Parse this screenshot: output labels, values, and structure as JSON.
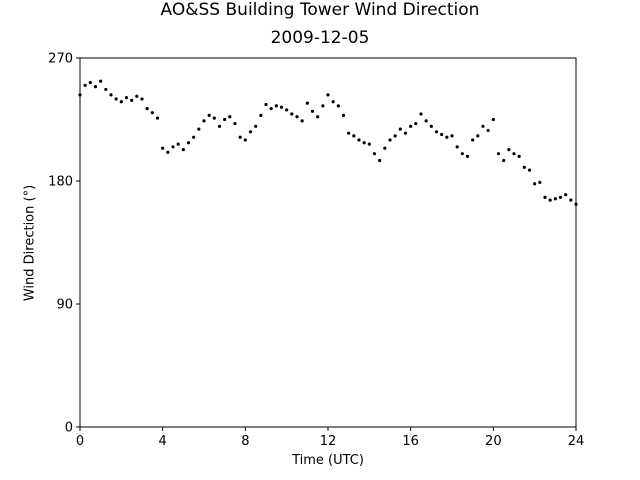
{
  "chart_data": {
    "type": "scatter",
    "title": "AO&SS Building Tower Wind Direction",
    "subtitle": "2009-12-05",
    "xlabel": "Time (UTC)",
    "ylabel": "Wind Direction (°)",
    "xlim": [
      0,
      24
    ],
    "ylim": [
      0,
      270
    ],
    "xticks": [
      0,
      4,
      8,
      12,
      16,
      20,
      24
    ],
    "yticks": [
      0,
      90,
      180,
      270
    ],
    "grid": false,
    "marker_color": "#000000",
    "series": [
      {
        "x": [
          0.0,
          0.25,
          0.5,
          0.75,
          1.0,
          1.25,
          1.5,
          1.75,
          2.0,
          2.25,
          2.5,
          2.75,
          3.0,
          3.25,
          3.5,
          3.75,
          4.0,
          4.25,
          4.5,
          4.75,
          5.0,
          5.25,
          5.5,
          5.75,
          6.0,
          6.25,
          6.5,
          6.75,
          7.0,
          7.25,
          7.5,
          7.75,
          8.0,
          8.25,
          8.5,
          8.75,
          9.0,
          9.25,
          9.5,
          9.75,
          10.0,
          10.25,
          10.5,
          10.75,
          11.0,
          11.25,
          11.5,
          11.75,
          12.0,
          12.25,
          12.5,
          12.75,
          13.0,
          13.25,
          13.5,
          13.75,
          14.0,
          14.25,
          14.5,
          14.75,
          15.0,
          15.25,
          15.5,
          15.75,
          16.0,
          16.25,
          16.5,
          16.75,
          17.0,
          17.25,
          17.5,
          17.75,
          18.0,
          18.25,
          18.5,
          18.75,
          19.0,
          19.25,
          19.5,
          19.75,
          20.0,
          20.25,
          20.5,
          20.75,
          21.0,
          21.25,
          21.5,
          21.75,
          22.0,
          22.25,
          22.5,
          22.75,
          23.0,
          23.25,
          23.5,
          23.75,
          24.0
        ],
        "y": [
          243,
          250,
          252,
          249,
          253,
          247,
          243,
          240,
          238,
          241,
          239,
          242,
          240,
          233,
          230,
          226,
          204,
          201,
          205,
          207,
          203,
          208,
          212,
          218,
          224,
          228,
          226,
          220,
          225,
          227,
          222,
          212,
          210,
          216,
          220,
          228,
          236,
          233,
          235,
          234,
          232,
          229,
          227,
          224,
          237,
          231,
          227,
          235,
          243,
          238,
          235,
          228,
          215,
          213,
          210,
          208,
          207,
          200,
          195,
          204,
          210,
          213,
          218,
          215,
          220,
          222,
          229,
          224,
          220,
          216,
          214,
          212,
          213,
          205,
          200,
          198,
          210,
          213,
          220,
          217,
          225,
          200,
          195,
          203,
          200,
          198,
          190,
          188,
          178,
          179,
          168,
          166,
          167,
          168,
          170,
          166,
          163
        ]
      }
    ]
  }
}
